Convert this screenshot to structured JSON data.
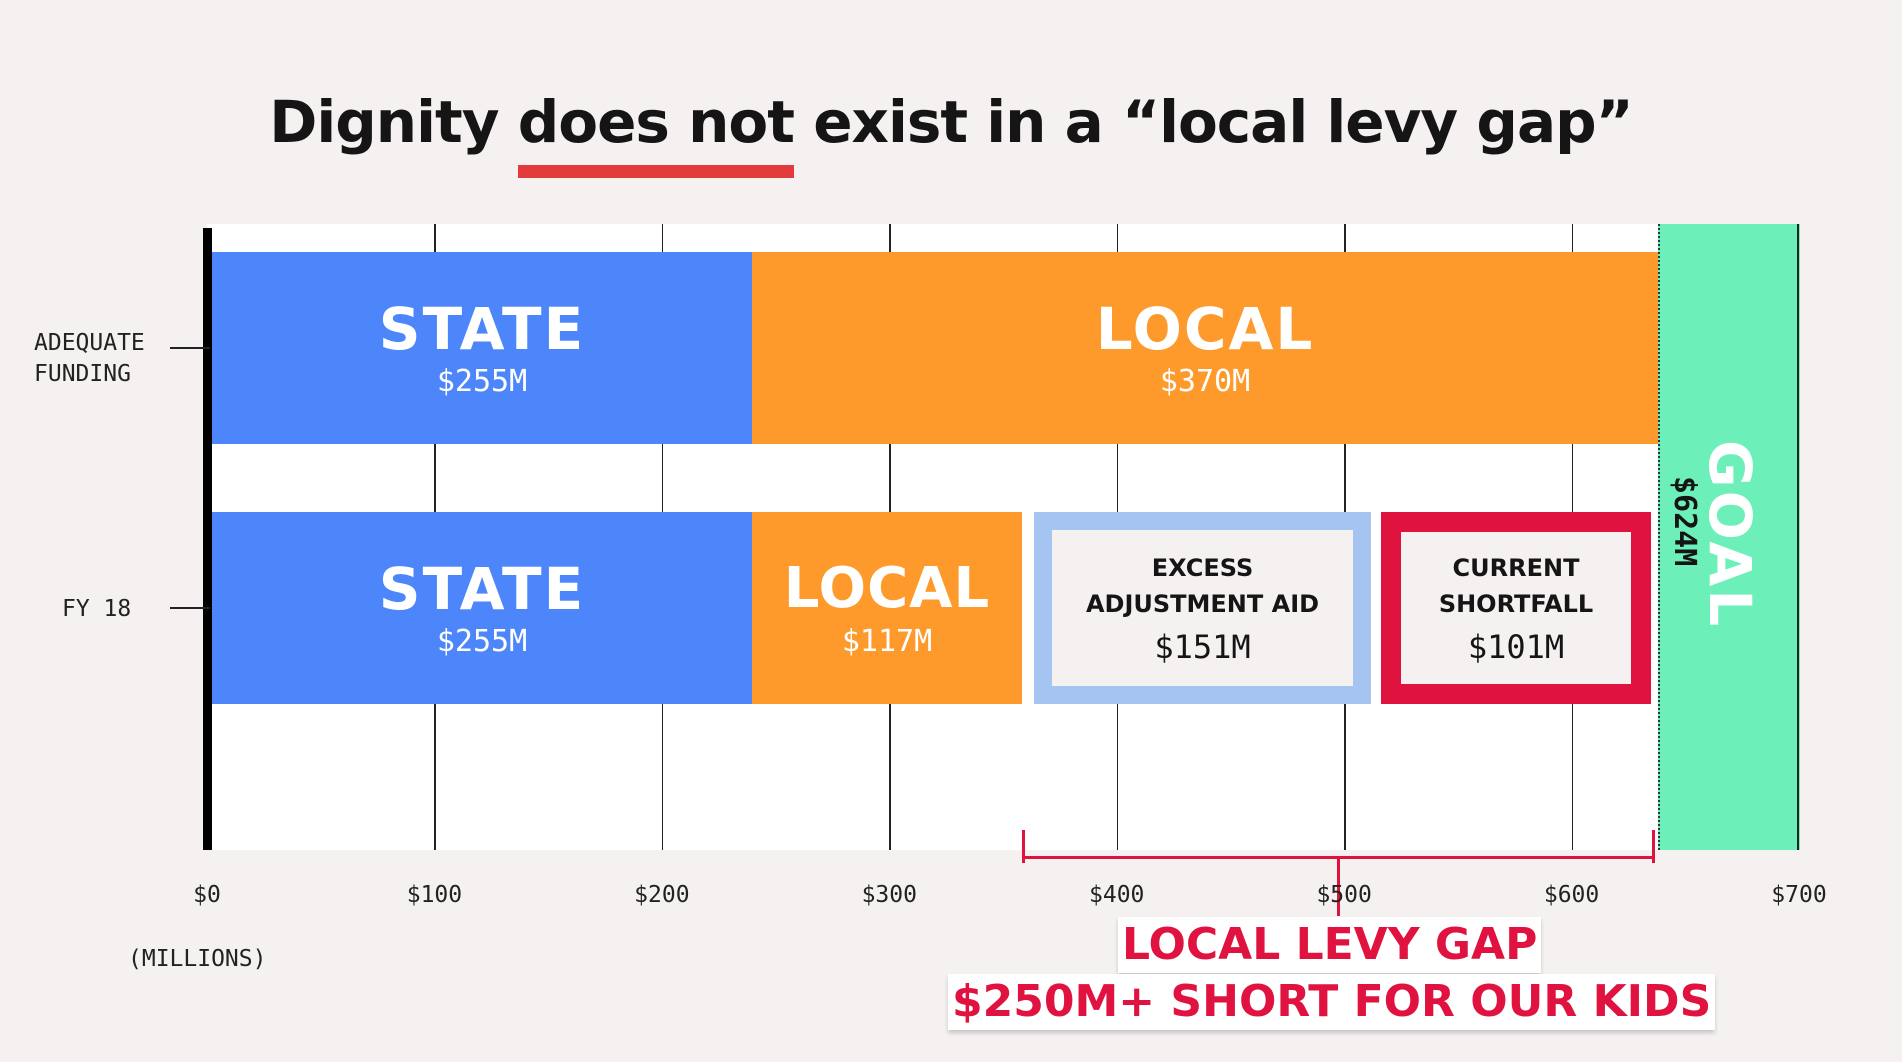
{
  "chart_data": {
    "type": "bar",
    "orientation": "horizontal-stacked",
    "title": "Dignity does not exist in a “local levy gap”",
    "title_parts": {
      "before": "Dignity ",
      "underlined": "does not",
      "after": " exist in a “local levy gap”"
    },
    "categories": [
      "ADEQUATE FUNDING",
      "FY 18"
    ],
    "category_lines": [
      [
        "ADEQUATE",
        "FUNDING"
      ],
      [
        "FY 18"
      ]
    ],
    "xlabel": "(MILLIONS)",
    "xlim": [
      0,
      700
    ],
    "x_ticks": [
      "$0",
      "$100",
      "$200",
      "$300",
      "$400",
      "$500",
      "$600",
      "$700"
    ],
    "grid": true,
    "rows": [
      {
        "category": "ADEQUATE FUNDING",
        "segments": [
          {
            "name": "STATE",
            "value": 255,
            "label": "$255M",
            "color": "#4d86fb"
          },
          {
            "name": "LOCAL",
            "value": 370,
            "label": "$370M",
            "color": "#fd9a2b"
          }
        ]
      },
      {
        "category": "FY 18",
        "segments": [
          {
            "name": "STATE",
            "value": 255,
            "label": "$255M",
            "color": "#4d86fb"
          },
          {
            "name": "LOCAL",
            "value": 117,
            "label": "$117M",
            "color": "#fd9a2b"
          },
          {
            "name_lines": [
              "EXCESS",
              "ADJUSTMENT AID"
            ],
            "value": 151,
            "label": "$151M",
            "color": "#a5c4f1"
          },
          {
            "name_lines": [
              "CURRENT",
              "SHORTFALL"
            ],
            "value": 101,
            "label": "$101M",
            "color": "#e0123f"
          }
        ]
      }
    ],
    "goal": {
      "name": "GOAL",
      "value": 624,
      "label": "$624M",
      "color": "#6cefb8"
    },
    "annotation": {
      "lines": [
        "LOCAL LEVY GAP",
        "$250M+ SHORT FOR OUR KIDS"
      ],
      "color": "#e0123f"
    }
  }
}
